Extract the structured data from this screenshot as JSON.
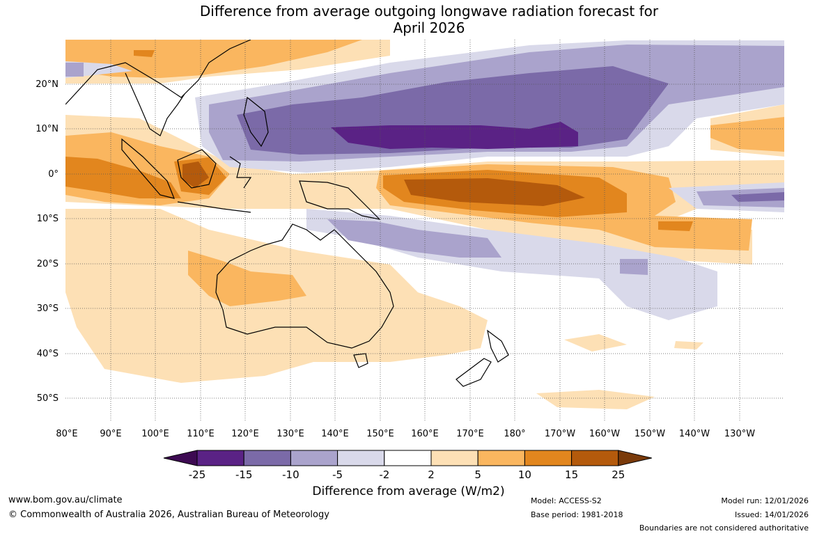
{
  "title": {
    "line1": "Difference from average outgoing longwave radiation forecast for",
    "line2": "April 2026"
  },
  "map": {
    "lat_labels": [
      "20°N",
      "10°N",
      "0°",
      "10°S",
      "20°S",
      "30°S",
      "40°S",
      "50°S"
    ],
    "lon_labels": [
      "80°E",
      "90°E",
      "100°E",
      "110°E",
      "120°E",
      "130°E",
      "140°E",
      "150°E",
      "160°E",
      "170°E",
      "180°",
      "170°W",
      "160°W",
      "150°W",
      "140°W",
      "130°W"
    ],
    "extent": {
      "lon_min": 80,
      "lon_max": 240,
      "lat_min": -55,
      "lat_max": 30
    }
  },
  "colorbar": {
    "ticks": [
      "-25",
      "-15",
      "-10",
      "-5",
      "-2",
      "2",
      "5",
      "10",
      "15",
      "25"
    ],
    "colors": [
      "#3d0a52",
      "#5a2285",
      "#7b6aa8",
      "#aaa3cc",
      "#d9d9ea",
      "#ffffff",
      "#fde0b5",
      "#fab65f",
      "#e2861e",
      "#b45a0c",
      "#7a3a0a"
    ],
    "title": "Difference from average (W/m2)"
  },
  "footer": {
    "url": "www.bom.gov.au/climate",
    "copyright": "© Commonwealth of Australia 2026, Australian Bureau of Meteorology",
    "model": "Model: ACCESS-S2",
    "base_period": "Base period: 1981-2018",
    "model_run": "Model run: 12/01/2026",
    "issued": "Issued: 14/01/2026",
    "disclaimer": "Boundaries are not considered authoritative"
  }
}
